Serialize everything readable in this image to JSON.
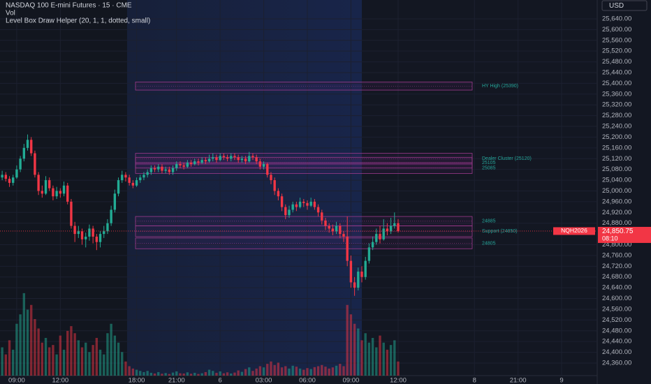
{
  "header": {
    "title": "NASDAQ 100 E-mini Futures · 15 · CME",
    "volume_indicator": "Vol",
    "indicator": "Level Box Draw Helper (20, 1, 1, dotted, small)",
    "currency": "USD"
  },
  "chart_data": {
    "type": "candlestick",
    "up_color": "#22ab94",
    "down_color": "#f23645",
    "xlim": [
      -0.6,
      163.8
    ],
    "xticks": [
      {
        "value": 4,
        "label": "09:00"
      },
      {
        "value": 16,
        "label": "12:00"
      },
      {
        "value": 37,
        "label": "18:00"
      },
      {
        "value": 48,
        "label": "21:00"
      },
      {
        "value": 60,
        "label": "6"
      },
      {
        "value": 72,
        "label": "03:00"
      },
      {
        "value": 84,
        "label": "06:00"
      },
      {
        "value": 96,
        "label": "09:00"
      },
      {
        "value": 109,
        "label": "12:00"
      },
      {
        "value": 130,
        "label": "8"
      },
      {
        "value": 142,
        "label": "21:00"
      },
      {
        "value": 154,
        "label": "9"
      }
    ],
    "ylim": [
      24321,
      25710
    ],
    "yticks": [
      {
        "value": 25640,
        "label": "25,640.00"
      },
      {
        "value": 25600,
        "label": "25,600.00"
      },
      {
        "value": 25560,
        "label": "25,560.00"
      },
      {
        "value": 25520,
        "label": "25,520.00"
      },
      {
        "value": 25480,
        "label": "25,480.00"
      },
      {
        "value": 25440,
        "label": "25,440.00"
      },
      {
        "value": 25400,
        "label": "25,400.00"
      },
      {
        "value": 25360,
        "label": "25,360.00"
      },
      {
        "value": 25320,
        "label": "25,320.00"
      },
      {
        "value": 25280,
        "label": "25,280.00"
      },
      {
        "value": 25240,
        "label": "25,240.00"
      },
      {
        "value": 25200,
        "label": "25,200.00"
      },
      {
        "value": 25160,
        "label": "25,160.00"
      },
      {
        "value": 25120,
        "label": "25,120.00"
      },
      {
        "value": 25080,
        "label": "25,080.00"
      },
      {
        "value": 25040,
        "label": "25,040.00"
      },
      {
        "value": 25000,
        "label": "25,000.00"
      },
      {
        "value": 24960,
        "label": "24,960.00"
      },
      {
        "value": 24920,
        "label": "24,920.00"
      },
      {
        "value": 24880,
        "label": "24,880.00"
      },
      {
        "value": 24800,
        "label": "24,800.00"
      },
      {
        "value": 24760,
        "label": "24,760.00"
      },
      {
        "value": 24720,
        "label": "24,720.00"
      },
      {
        "value": 24680,
        "label": "24,680.00"
      },
      {
        "value": 24640,
        "label": "24,640.00"
      },
      {
        "value": 24600,
        "label": "24,600.00"
      },
      {
        "value": 24560,
        "label": "24,560.00"
      },
      {
        "value": 24520,
        "label": "24,520.00"
      },
      {
        "value": 24480,
        "label": "24,480.00"
      },
      {
        "value": 24440,
        "label": "24,440.00"
      },
      {
        "value": 24400,
        "label": "24,400.00"
      },
      {
        "value": 24360,
        "label": "24,360.00"
      }
    ],
    "open": [
      25050,
      25060,
      25045,
      25030,
      25050,
      25080,
      25120,
      25160,
      25190,
      25140,
      25060,
      25000,
      24990,
      25040,
      25010,
      24980,
      25000,
      24990,
      25020,
      24960,
      24870,
      24840,
      24850,
      24820,
      24830,
      24860,
      24830,
      24810,
      24840,
      24850,
      24880,
      24930,
      24990,
      25040,
      25060,
      25050,
      25030,
      25020,
      25040,
      25050,
      25060,
      25070,
      25085,
      25080,
      25090,
      25075,
      25080,
      25070,
      25085,
      25100,
      25095,
      25090,
      25105,
      25100,
      25110,
      25105,
      25115,
      25110,
      25120,
      25125,
      25115,
      25130,
      25125,
      25120,
      25130,
      25125,
      25115,
      25120,
      25110,
      25130,
      25125,
      25110,
      25090,
      25100,
      25060,
      25040,
      25000,
      24980,
      24940,
      24910,
      24930,
      24950,
      24940,
      24960,
      24955,
      24945,
      24960,
      24940,
      24920,
      24890,
      24870,
      24860,
      24850,
      24870,
      24840,
      24830,
      24740,
      24660,
      24640,
      24700,
      24680,
      24740,
      24790,
      24810,
      24840,
      24820,
      24860,
      24850,
      24870,
      24880
    ],
    "high": [
      25075,
      25070,
      25055,
      25060,
      25095,
      25130,
      25175,
      25210,
      25200,
      25150,
      25070,
      25020,
      25055,
      25050,
      25020,
      25015,
      25010,
      25035,
      25030,
      24970,
      24885,
      24870,
      24860,
      24845,
      24875,
      24870,
      24840,
      24850,
      24870,
      24895,
      24945,
      25005,
      25050,
      25075,
      25070,
      25060,
      25040,
      25050,
      25060,
      25070,
      25080,
      25095,
      25095,
      25100,
      25100,
      25090,
      25090,
      25095,
      25110,
      25110,
      25105,
      25115,
      25115,
      25120,
      25120,
      25125,
      25125,
      25135,
      25140,
      25135,
      25140,
      25140,
      25135,
      25140,
      25140,
      25135,
      25130,
      25130,
      25145,
      25140,
      25135,
      25120,
      25110,
      25105,
      25070,
      25050,
      25010,
      24990,
      24950,
      24945,
      24960,
      24960,
      24975,
      24970,
      24965,
      24975,
      24970,
      24950,
      24930,
      24900,
      24880,
      24875,
      24885,
      24880,
      24850,
      24905,
      24760,
      24680,
      24715,
      24720,
      24755,
      24805,
      24830,
      24860,
      24870,
      24895,
      24880,
      24900,
      24920,
      24895
    ],
    "low": [
      25040,
      25035,
      25015,
      25020,
      25045,
      25070,
      25110,
      25150,
      25130,
      25050,
      24985,
      24975,
      24985,
      25000,
      24965,
      24970,
      24975,
      24980,
      24950,
      24860,
      24810,
      24825,
      24800,
      24790,
      24815,
      24805,
      24780,
      24790,
      24825,
      24840,
      24870,
      24920,
      24980,
      25030,
      25035,
      25020,
      25010,
      25015,
      25030,
      25040,
      25050,
      25060,
      25070,
      25070,
      25065,
      25065,
      25060,
      25060,
      25075,
      25085,
      25080,
      25085,
      25090,
      25095,
      25095,
      25100,
      25100,
      25105,
      25110,
      25105,
      25110,
      25115,
      25110,
      25110,
      25115,
      25105,
      25105,
      25100,
      25105,
      25115,
      25100,
      25080,
      25080,
      25050,
      25025,
      24985,
      24965,
      24925,
      24895,
      24900,
      24920,
      24925,
      24935,
      24940,
      24930,
      24940,
      24930,
      24905,
      24875,
      24855,
      24845,
      24835,
      24840,
      24825,
      24810,
      24720,
      24640,
      24610,
      24630,
      24660,
      24670,
      24730,
      24780,
      24800,
      24805,
      24815,
      24835,
      24840,
      24860,
      24845
    ],
    "close": [
      25060,
      25045,
      25030,
      25050,
      25080,
      25120,
      25160,
      25190,
      25140,
      25060,
      25000,
      24990,
      25040,
      25010,
      24980,
      25000,
      24990,
      25020,
      24960,
      24870,
      24840,
      24850,
      24820,
      24830,
      24860,
      24830,
      24810,
      24840,
      24850,
      24880,
      24930,
      24990,
      25040,
      25060,
      25050,
      25030,
      25020,
      25040,
      25050,
      25060,
      25070,
      25085,
      25080,
      25090,
      25075,
      25080,
      25070,
      25085,
      25100,
      25095,
      25090,
      25105,
      25100,
      25110,
      25105,
      25115,
      25110,
      25120,
      25125,
      25115,
      25130,
      25125,
      25120,
      25130,
      25125,
      25115,
      25120,
      25110,
      25130,
      25125,
      25110,
      25090,
      25100,
      25060,
      25040,
      25000,
      24980,
      24940,
      24910,
      24930,
      24950,
      24940,
      24960,
      24955,
      24945,
      24960,
      24940,
      24920,
      24890,
      24870,
      24860,
      24850,
      24870,
      24840,
      24830,
      24740,
      24660,
      24640,
      24700,
      24680,
      24740,
      24790,
      24810,
      24840,
      24820,
      24860,
      24850,
      24870,
      24880,
      24850.75
    ],
    "volume_lim": [
      0,
      40000
    ],
    "volume": [
      12000,
      9000,
      15000,
      11000,
      22000,
      26000,
      35000,
      28000,
      30000,
      24000,
      20000,
      14000,
      16000,
      12000,
      13000,
      9000,
      17000,
      11000,
      19000,
      21000,
      18000,
      15000,
      12000,
      14000,
      10000,
      13000,
      16000,
      11000,
      9000,
      18000,
      22000,
      17000,
      14000,
      10000,
      6000,
      4000,
      3000,
      2500,
      2000,
      1500,
      2000,
      1200,
      900,
      1500,
      800,
      1100,
      700,
      1300,
      1800,
      1000,
      900,
      1400,
      800,
      1200,
      700,
      1000,
      1500,
      2500,
      2000,
      1200,
      1800,
      1000,
      1400,
      900,
      1300,
      2200,
      1600,
      2800,
      3500,
      2000,
      3000,
      4000,
      3500,
      5000,
      6000,
      4500,
      5500,
      3500,
      4000,
      3000,
      4200,
      3800,
      3000,
      2500,
      3200,
      2800,
      3600,
      4000,
      4500,
      3800,
      3000,
      3500,
      4200,
      5000,
      4000,
      30000,
      26000,
      22000,
      20000,
      15000,
      18000,
      14000,
      16000,
      12000,
      17000,
      14000,
      11000,
      13000,
      15000,
      6000
    ],
    "levels": [
      {
        "label": "HY High (25390)",
        "top": 25405,
        "bottom": 25375
      },
      {
        "label": "Dealer Cluster (25120)",
        "top": 25140,
        "bottom": 25100
      },
      {
        "label": "25105",
        "top": 25125,
        "bottom": 25085
      },
      {
        "label": "25085",
        "top": 25105,
        "bottom": 25065
      },
      {
        "label": "24885",
        "top": 24905,
        "bottom": 24870
      },
      {
        "label": "Support (24850)",
        "top": 24870,
        "bottom": 24830
      },
      {
        "label": "24805",
        "top": 24825,
        "bottom": 24785
      }
    ],
    "last_price": {
      "value": 24850.75,
      "label": "24,850.75"
    },
    "countdown": "08:10",
    "symbol": "NQH2026"
  }
}
